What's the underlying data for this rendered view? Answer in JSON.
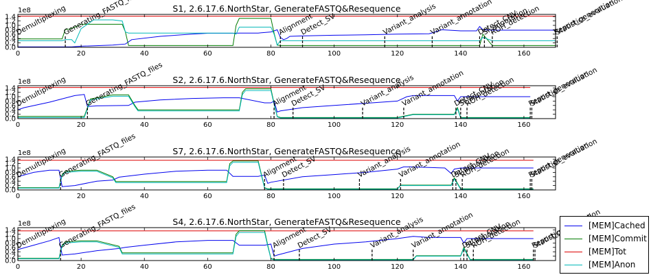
{
  "figure": {
    "colors": {
      "[MEM]Cached": "#0000ee",
      "[MEM]Commit": "#007a00",
      "[MEM]Tot": "#dd0000",
      "[MEM]Anon": "#00b8b8"
    },
    "legend": [
      "[MEM]Cached",
      "[MEM]Commit",
      "[MEM]Tot",
      "[MEM]Anon"
    ],
    "legend_placement": "bottom-right"
  },
  "chart_data": [
    {
      "type": "line",
      "title": "S1, 2.6.17.6.NorthStar, GenerateFASTQ&Resequence",
      "y_multiplier": "1e8",
      "xlim": [
        0,
        170
      ],
      "ylim": [
        0,
        1.5
      ],
      "xticks": [
        "0",
        "20",
        "40",
        "60",
        "80",
        "100",
        "120",
        "140",
        "160"
      ],
      "yticks": [
        "0.0",
        "0.2",
        "0.4",
        "0.6",
        "0.8",
        "1.0",
        "1.2",
        "1.4"
      ],
      "grid": false,
      "series": [
        {
          "name": "[MEM]Tot",
          "x": [
            0,
            170
          ],
          "y": [
            1.42,
            1.42
          ]
        },
        {
          "name": "[MEM]Cached",
          "x": [
            0,
            16,
            17,
            20,
            30,
            34,
            36,
            45,
            55,
            60,
            68,
            70,
            76,
            80,
            82,
            83,
            84,
            85,
            86,
            90,
            100,
            110,
            120,
            130,
            132,
            134,
            140,
            145,
            146,
            147,
            150,
            160,
            170
          ],
          "y": [
            0.02,
            0.02,
            0.02,
            0.05,
            0.1,
            0.15,
            0.35,
            0.5,
            0.6,
            0.64,
            0.64,
            0.65,
            0.65,
            0.7,
            0.8,
            0.45,
            0.35,
            0.4,
            0.5,
            0.52,
            0.55,
            0.57,
            0.6,
            0.62,
            0.7,
            0.8,
            0.75,
            0.75,
            0.95,
            0.8,
            0.78,
            0.78,
            0.78
          ]
        },
        {
          "name": "[MEM]Commit",
          "x": [
            0,
            14,
            15,
            16,
            18,
            20,
            33,
            34,
            35,
            68,
            69,
            70,
            76,
            80,
            81,
            82,
            83,
            90,
            146,
            147,
            150,
            170
          ],
          "y": [
            0.38,
            0.38,
            0.82,
            0.82,
            0.92,
            1.05,
            1.05,
            0.7,
            0.08,
            0.08,
            1.0,
            1.32,
            1.32,
            1.32,
            0.65,
            0.1,
            0.08,
            0.08,
            0.08,
            0.6,
            0.08,
            0.08
          ]
        },
        {
          "name": "[MEM]Anon",
          "x": [
            0,
            14,
            15,
            17,
            18,
            20,
            24,
            30,
            33,
            34,
            35,
            68,
            69,
            70,
            76,
            80,
            81,
            82,
            83,
            90,
            146,
            147,
            150,
            170
          ],
          "y": [
            0.3,
            0.3,
            0.35,
            0.35,
            0.2,
            0.85,
            1.25,
            1.25,
            1.2,
            0.7,
            0.65,
            0.65,
            0.6,
            0.92,
            0.92,
            0.92,
            0.6,
            0.1,
            0.3,
            0.3,
            0.3,
            0.45,
            0.3,
            0.3
          ]
        }
      ],
      "annotations": [
        {
          "text": "Demultiplexing",
          "x": 0
        },
        {
          "text": "Generating_FASTQ_files",
          "x": 15
        },
        {
          "text": "Alignment",
          "x": 83
        },
        {
          "text": "Detect_SV",
          "x": 90
        },
        {
          "text": "Variant_analysis",
          "x": 116
        },
        {
          "text": "Variant_annotation",
          "x": 131
        },
        {
          "text": "Detect_CNV",
          "x": 146
        },
        {
          "text": "SI_annotation",
          "x": 147.5
        },
        {
          "text": "ROH_detection",
          "x": 150
        },
        {
          "text": "Report_generation",
          "x": 170
        },
        {
          "text": "Statistics_evaluation",
          "x": 170.5
        }
      ]
    },
    {
      "type": "line",
      "title": "S2, 2.6.17.6.NorthStar, GenerateFASTQ&Resequence",
      "y_multiplier": "1e8",
      "xlim": [
        0,
        170
      ],
      "ylim": [
        0,
        1.5
      ],
      "xticks": [
        "0",
        "20",
        "40",
        "60",
        "80",
        "100",
        "120",
        "140",
        "160"
      ],
      "yticks": [
        "0.0",
        "0.2",
        "0.4",
        "0.6",
        "0.8",
        "1.0",
        "1.2",
        "1.4"
      ],
      "grid": false,
      "series": [
        {
          "name": "[MEM]Tot",
          "x": [
            0,
            162
          ],
          "y": [
            1.42,
            1.42
          ]
        },
        {
          "name": "[MEM]Cached",
          "x": [
            0,
            2,
            10,
            18,
            21,
            22,
            25,
            35,
            37,
            45,
            55,
            65,
            70,
            78,
            80,
            81,
            82,
            83,
            90,
            100,
            110,
            120,
            123,
            125,
            135,
            138,
            139,
            140,
            141,
            150,
            160,
            162
          ],
          "y": [
            0.4,
            0.5,
            0.75,
            1.05,
            1.1,
            0.55,
            0.58,
            0.6,
            0.75,
            0.85,
            0.92,
            0.95,
            0.95,
            0.72,
            0.72,
            0.8,
            0.3,
            0.35,
            0.5,
            0.6,
            0.7,
            0.8,
            1.0,
            1.05,
            1.05,
            1.05,
            0.8,
            1.0,
            1.0,
            1.0,
            1.0,
            1.0
          ]
        },
        {
          "name": "[MEM]Commit",
          "x": [
            0,
            21,
            22,
            23,
            25,
            30,
            35,
            37,
            38,
            70,
            71,
            72,
            80,
            81,
            82,
            83,
            90,
            100,
            120,
            125,
            138,
            139,
            140,
            150,
            162
          ],
          "y": [
            0.1,
            0.1,
            0.5,
            0.9,
            0.95,
            1.08,
            1.08,
            0.6,
            0.4,
            0.4,
            1.2,
            1.36,
            1.36,
            0.7,
            0.1,
            0.05,
            0.05,
            0.05,
            0.05,
            0.2,
            0.2,
            0.5,
            0.05,
            0.05,
            0.05
          ]
        },
        {
          "name": "[MEM]Anon",
          "x": [
            0,
            21,
            22,
            23,
            25,
            30,
            35,
            37,
            38,
            70,
            71,
            72,
            80,
            81,
            82,
            83,
            90,
            100,
            120,
            125,
            138,
            139,
            140,
            150,
            162
          ],
          "y": [
            0.05,
            0.05,
            0.45,
            0.85,
            0.9,
            1.02,
            1.02,
            0.55,
            0.35,
            0.35,
            1.1,
            1.28,
            1.28,
            0.65,
            0.08,
            0.03,
            0.03,
            0.03,
            0.03,
            0.18,
            0.18,
            0.45,
            0.03,
            0.03,
            0.03
          ]
        }
      ],
      "annotations": [
        {
          "text": "Demultiplexing",
          "x": 0
        },
        {
          "text": "Generating_FASTQ_files",
          "x": 22
        },
        {
          "text": "Alignment",
          "x": 81
        },
        {
          "text": "Detect_SV",
          "x": 87
        },
        {
          "text": "Variant_analysis",
          "x": 109
        },
        {
          "text": "Variant_annotation",
          "x": 122
        },
        {
          "text": "Detect_CNV",
          "x": 138.5
        },
        {
          "text": "SI_annotation",
          "x": 140
        },
        {
          "text": "ROH_detection",
          "x": 142
        },
        {
          "text": "Report_generation",
          "x": 162
        },
        {
          "text": "Statistics_evaluation",
          "x": 162.5
        }
      ]
    },
    {
      "type": "line",
      "title": "S7, 2.6.17.6.NorthStar, GenerateFASTQ&Resequence",
      "y_multiplier": "1e8",
      "xlim": [
        0,
        170
      ],
      "ylim": [
        0,
        1.5
      ],
      "xticks": [
        "0",
        "20",
        "40",
        "60",
        "80",
        "100",
        "120",
        "140",
        "160"
      ],
      "yticks": [
        "0.0",
        "0.2",
        "0.4",
        "0.6",
        "0.8",
        "1.0",
        "1.2",
        "1.4"
      ],
      "grid": false,
      "series": [
        {
          "name": "[MEM]Tot",
          "x": [
            0,
            163
          ],
          "y": [
            1.35,
            1.35
          ]
        },
        {
          "name": "[MEM]Cached",
          "x": [
            0,
            5,
            10,
            13,
            14,
            18,
            25,
            30,
            32,
            40,
            50,
            60,
            66,
            68,
            76,
            78,
            79,
            80,
            90,
            100,
            110,
            120,
            122,
            124,
            135,
            137,
            138,
            140,
            150,
            163
          ],
          "y": [
            0.6,
            0.8,
            0.9,
            0.9,
            0.15,
            0.2,
            0.4,
            0.45,
            0.58,
            0.72,
            0.85,
            0.9,
            0.9,
            0.62,
            0.62,
            0.68,
            0.3,
            0.35,
            0.6,
            0.7,
            0.8,
            0.95,
            1.05,
            1.05,
            1.0,
            0.75,
            0.95,
            1.0,
            1.0,
            1.0
          ]
        },
        {
          "name": "[MEM]Commit",
          "x": [
            0,
            13,
            14,
            15,
            20,
            25,
            30,
            31,
            32,
            66,
            67,
            68,
            76,
            77,
            78,
            79,
            90,
            120,
            121,
            137,
            138,
            140,
            163
          ],
          "y": [
            0.1,
            0.1,
            0.7,
            0.85,
            0.9,
            0.9,
            0.6,
            0.38,
            0.38,
            0.38,
            1.2,
            1.32,
            1.32,
            0.7,
            0.1,
            0.05,
            0.05,
            0.05,
            0.22,
            0.22,
            0.55,
            0.05,
            0.05
          ]
        },
        {
          "name": "[MEM]Anon",
          "x": [
            0,
            13,
            14,
            15,
            20,
            25,
            30,
            31,
            32,
            66,
            67,
            68,
            76,
            77,
            78,
            79,
            90,
            120,
            121,
            137,
            138,
            140,
            163
          ],
          "y": [
            0.08,
            0.08,
            0.65,
            0.8,
            0.85,
            0.85,
            0.55,
            0.33,
            0.33,
            0.33,
            1.1,
            1.26,
            1.26,
            0.65,
            0.08,
            0.03,
            0.03,
            0.03,
            0.2,
            0.2,
            0.5,
            0.03,
            0.03
          ]
        }
      ],
      "annotations": [
        {
          "text": "Demultiplexing",
          "x": 0
        },
        {
          "text": "Generating_FASTQ_files",
          "x": 13.5
        },
        {
          "text": "Alignment",
          "x": 78
        },
        {
          "text": "Detect_SV",
          "x": 84
        },
        {
          "text": "Variant_analysis",
          "x": 108
        },
        {
          "text": "Variant_annotation",
          "x": 121
        },
        {
          "text": "Detect_CNV",
          "x": 137.5
        },
        {
          "text": "SI_annotation",
          "x": 138.5
        },
        {
          "text": "ROH_detection",
          "x": 140.5
        },
        {
          "text": "Report_generation",
          "x": 162
        },
        {
          "text": "Statistics_evaluation",
          "x": 162.5
        }
      ]
    },
    {
      "type": "line",
      "title": "S4, 2.6.17.6.NorthStar, GenerateFASTQ&Resequence",
      "y_multiplier": "1e8",
      "xlim": [
        0,
        170
      ],
      "ylim": [
        0,
        1.5
      ],
      "xticks": [
        "0",
        "20",
        "40",
        "60",
        "80",
        "100",
        "120",
        "140",
        "160"
      ],
      "yticks": [
        "0.0",
        "0.2",
        "0.4",
        "0.6",
        "0.8",
        "1.0",
        "1.2",
        "1.4"
      ],
      "grid": false,
      "series": [
        {
          "name": "[MEM]Tot",
          "x": [
            0,
            163
          ],
          "y": [
            1.35,
            1.35
          ]
        },
        {
          "name": "[MEM]Cached",
          "x": [
            0,
            5,
            10,
            13,
            14,
            18,
            25,
            32,
            34,
            40,
            50,
            60,
            68,
            70,
            78,
            80,
            81,
            82,
            90,
            100,
            110,
            120,
            125,
            130,
            140,
            141,
            142,
            150,
            163
          ],
          "y": [
            0.5,
            0.7,
            0.9,
            1.05,
            0.25,
            0.3,
            0.45,
            0.55,
            0.6,
            0.7,
            0.85,
            0.92,
            0.92,
            0.7,
            0.7,
            0.75,
            0.2,
            0.25,
            0.55,
            0.75,
            0.85,
            1.0,
            1.1,
            1.05,
            1.05,
            0.8,
            1.0,
            1.0,
            1.0
          ]
        },
        {
          "name": "[MEM]Commit",
          "x": [
            0,
            13,
            14,
            15,
            20,
            25,
            32,
            33,
            34,
            68,
            69,
            70,
            78,
            79,
            80,
            81,
            90,
            125,
            126,
            140,
            141,
            143,
            163
          ],
          "y": [
            0.1,
            0.1,
            0.7,
            0.85,
            0.9,
            0.9,
            0.65,
            0.35,
            0.35,
            0.35,
            1.2,
            1.36,
            1.36,
            0.7,
            0.1,
            0.05,
            0.05,
            0.05,
            0.22,
            0.22,
            0.6,
            0.05,
            0.05
          ]
        },
        {
          "name": "[MEM]Anon",
          "x": [
            0,
            13,
            14,
            15,
            20,
            25,
            32,
            33,
            34,
            68,
            69,
            70,
            78,
            79,
            80,
            81,
            90,
            125,
            126,
            140,
            141,
            143,
            163
          ],
          "y": [
            0.08,
            0.08,
            0.65,
            0.8,
            0.85,
            0.85,
            0.6,
            0.3,
            0.3,
            0.3,
            1.1,
            1.28,
            1.28,
            0.65,
            0.08,
            0.03,
            0.03,
            0.03,
            0.2,
            0.2,
            0.55,
            0.03,
            0.03
          ]
        }
      ],
      "annotations": [
        {
          "text": "Demultiplexing",
          "x": 0
        },
        {
          "text": "Generating_FASTQ_files",
          "x": 13.5
        },
        {
          "text": "Alignment",
          "x": 81
        },
        {
          "text": "Detect_SV",
          "x": 89
        },
        {
          "text": "Variant_analysis",
          "x": 112
        },
        {
          "text": "Variant_annotation",
          "x": 125
        },
        {
          "text": "Detect_CNV",
          "x": 141
        },
        {
          "text": "SI_annotation",
          "x": 142
        },
        {
          "text": "ROH_detection",
          "x": 144
        },
        {
          "text": "Report_generation",
          "x": 163
        },
        {
          "text": "Statistics_evaluation",
          "x": 163.5
        }
      ]
    }
  ]
}
